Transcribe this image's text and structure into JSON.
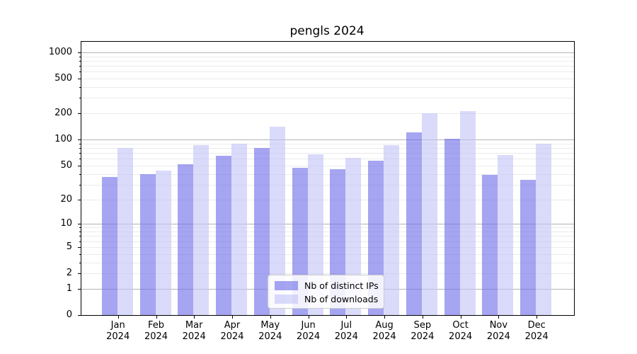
{
  "title": "pengls 2024",
  "legend": {
    "items": [
      {
        "label": "Nb of distinct IPs"
      },
      {
        "label": "Nb of downloads"
      }
    ]
  },
  "colors": {
    "bar_distinct_ips": "rgba(110,110,232,0.62)",
    "bar_downloads": "rgba(196,196,247,0.62)",
    "grid_major": "#b3b3b3",
    "grid_minor": "#ebebeb",
    "axis_line": "#000000",
    "text": "#000000"
  },
  "x_axis": {
    "months": [
      "Jan",
      "Feb",
      "Mar",
      "Apr",
      "May",
      "Jun",
      "Jul",
      "Aug",
      "Sep",
      "Oct",
      "Nov",
      "Dec"
    ],
    "year": "2024"
  },
  "y_axis": {
    "tick_labels": [
      "0",
      "1",
      "2",
      "5",
      "10",
      "20",
      "50",
      "100",
      "200",
      "500",
      "1000"
    ]
  },
  "chart_data": {
    "type": "bar",
    "title": "pengls 2024",
    "categories": [
      "Jan 2024",
      "Feb 2024",
      "Mar 2024",
      "Apr 2024",
      "May 2024",
      "Jun 2024",
      "Jul 2024",
      "Aug 2024",
      "Sep 2024",
      "Oct 2024",
      "Nov 2024",
      "Dec 2024"
    ],
    "series": [
      {
        "name": "Nb of distinct IPs",
        "values": [
          37,
          40,
          52,
          65,
          80,
          47,
          45,
          57,
          122,
          102,
          39,
          34
        ]
      },
      {
        "name": "Nb of downloads",
        "values": [
          80,
          44,
          86,
          90,
          140,
          68,
          62,
          86,
          199,
          212,
          66,
          90
        ]
      }
    ],
    "xlabel": "",
    "ylabel": "",
    "yscale": "log10(1+y)",
    "ylim": [
      0,
      1320
    ],
    "ytick_values": [
      0,
      1,
      2,
      5,
      10,
      20,
      50,
      100,
      200,
      500,
      1000
    ],
    "major_gridline_values": [
      1,
      10,
      100,
      1000
    ],
    "minor_gridline_values": [
      2,
      3,
      4,
      5,
      6,
      7,
      8,
      9,
      20,
      30,
      40,
      50,
      60,
      70,
      80,
      90,
      200,
      300,
      400,
      500,
      600,
      700,
      800,
      900
    ],
    "grid": true,
    "legend_position": "lower center"
  }
}
